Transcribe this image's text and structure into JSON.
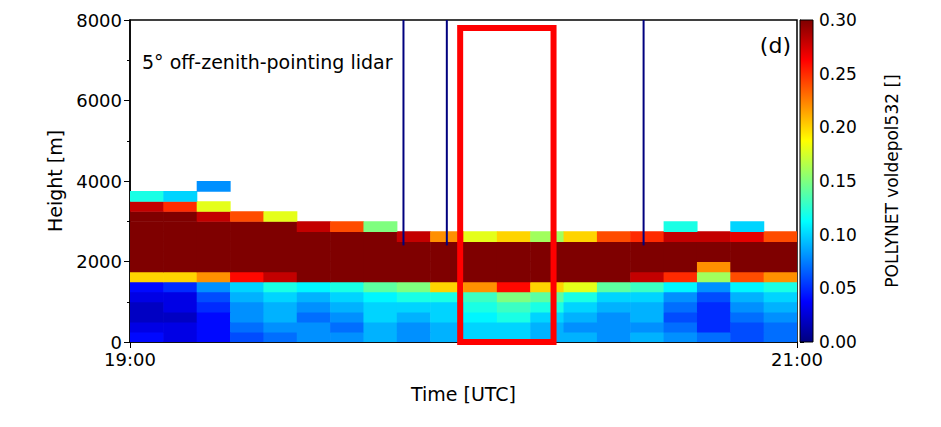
{
  "chart_data": {
    "type": "heatmap",
    "annotations": [
      "5° off-zenith-pointing lidar",
      "(d)"
    ],
    "x_label": "Time [UTC]",
    "y_label": "Height [m]",
    "xlim": [
      19,
      21
    ],
    "xticks": [
      {
        "value": 19,
        "label": "19:00"
      },
      {
        "value": 21,
        "label": "21:00"
      }
    ],
    "ylim": [
      0,
      8000
    ],
    "yticks": [
      0,
      2000,
      4000,
      6000,
      8000
    ],
    "grid": false,
    "x": [
      19.05,
      19.15,
      19.25,
      19.35,
      19.45,
      19.55,
      19.65,
      19.75,
      19.85,
      19.95,
      20.05,
      20.15,
      20.25,
      20.35,
      20.45,
      20.55,
      20.65,
      20.75,
      20.85,
      20.95
    ],
    "y": [
      125,
      375,
      625,
      875,
      1125,
      1375,
      1625,
      1875,
      2125,
      2375,
      2625,
      2875,
      3125,
      3375,
      3625,
      3875
    ],
    "cells": [
      [
        0.04,
        0.03,
        0.04,
        0.06,
        0.07,
        0.08,
        0.08,
        0.09,
        0.08,
        0.09,
        0.1,
        0.1,
        0.09,
        0.09,
        0.08,
        0.09,
        0.08,
        0.07,
        0.06,
        0.07
      ],
      [
        0.03,
        0.03,
        0.04,
        0.07,
        0.08,
        0.08,
        0.07,
        0.09,
        0.08,
        0.09,
        0.1,
        0.1,
        0.09,
        0.08,
        0.08,
        0.08,
        0.07,
        0.05,
        0.06,
        0.07
      ],
      [
        0.02,
        0.02,
        0.04,
        0.08,
        0.09,
        0.07,
        0.08,
        0.1,
        0.09,
        0.1,
        0.11,
        0.12,
        0.1,
        0.09,
        0.08,
        0.09,
        0.06,
        0.05,
        0.07,
        0.08
      ],
      [
        0.02,
        0.03,
        0.05,
        0.08,
        0.09,
        0.08,
        0.09,
        0.1,
        0.1,
        0.1,
        0.12,
        0.13,
        0.12,
        0.1,
        0.09,
        0.09,
        0.07,
        0.05,
        0.08,
        0.09
      ],
      [
        0.03,
        0.03,
        0.06,
        0.09,
        0.1,
        0.09,
        0.1,
        0.11,
        0.12,
        0.12,
        0.13,
        0.15,
        0.14,
        0.12,
        0.1,
        0.1,
        0.08,
        0.06,
        0.09,
        0.1
      ],
      [
        0.04,
        0.05,
        0.08,
        0.1,
        0.12,
        0.11,
        0.12,
        0.14,
        0.15,
        0.2,
        0.22,
        0.26,
        0.2,
        0.18,
        0.14,
        0.13,
        0.11,
        0.08,
        0.11,
        0.12
      ],
      [
        0.2,
        0.2,
        0.22,
        0.26,
        0.28,
        0.3,
        0.3,
        0.3,
        0.3,
        0.3,
        0.3,
        0.3,
        0.3,
        0.3,
        0.3,
        0.28,
        0.25,
        0.16,
        0.24,
        0.22
      ],
      [
        0.3,
        0.3,
        0.3,
        0.3,
        0.3,
        0.3,
        0.3,
        0.3,
        0.3,
        0.3,
        0.3,
        0.3,
        0.3,
        0.3,
        0.3,
        0.3,
        0.3,
        0.22,
        0.3,
        0.3
      ],
      [
        0.3,
        0.3,
        0.3,
        0.3,
        0.3,
        0.3,
        0.3,
        0.3,
        0.3,
        0.3,
        0.3,
        0.3,
        0.3,
        0.3,
        0.3,
        0.3,
        0.3,
        0.3,
        0.3,
        0.3
      ],
      [
        0.3,
        0.3,
        0.3,
        0.3,
        0.3,
        0.3,
        0.3,
        0.3,
        0.3,
        0.3,
        0.3,
        0.3,
        0.3,
        0.3,
        0.3,
        0.3,
        0.3,
        0.3,
        0.3,
        0.3
      ],
      [
        0.3,
        0.3,
        0.3,
        0.3,
        0.3,
        0.3,
        0.3,
        0.3,
        0.28,
        0.22,
        0.18,
        0.2,
        0.16,
        0.2,
        0.24,
        0.25,
        0.28,
        0.28,
        0.27,
        0.24
      ],
      [
        0.3,
        0.3,
        0.3,
        0.3,
        0.3,
        0.28,
        0.24,
        0.15,
        null,
        null,
        null,
        null,
        null,
        null,
        null,
        null,
        0.12,
        null,
        0.1,
        null
      ],
      [
        0.3,
        0.3,
        0.28,
        0.24,
        0.18,
        null,
        null,
        null,
        null,
        null,
        null,
        null,
        null,
        null,
        null,
        null,
        null,
        null,
        null,
        null
      ],
      [
        0.28,
        0.25,
        0.18,
        null,
        null,
        null,
        null,
        null,
        null,
        null,
        null,
        null,
        null,
        null,
        null,
        null,
        null,
        null,
        null,
        null
      ],
      [
        0.12,
        0.1,
        null,
        null,
        null,
        null,
        null,
        null,
        null,
        null,
        null,
        null,
        null,
        null,
        null,
        null,
        null,
        null,
        null,
        null
      ],
      [
        null,
        null,
        0.08,
        null,
        null,
        null,
        null,
        null,
        null,
        null,
        null,
        null,
        null,
        null,
        null,
        null,
        null,
        null,
        null,
        null
      ]
    ],
    "profiles": [
      {
        "x": 19.82,
        "y": [
          2400,
          8000
        ],
        "value": 0
      },
      {
        "x": 19.95,
        "y": [
          2400,
          8000
        ],
        "value": 0
      },
      {
        "x": 20.54,
        "y": [
          2400,
          8000
        ],
        "value": 0
      }
    ],
    "box": {
      "x": [
        19.99,
        20.27
      ],
      "y": [
        0,
        7800
      ],
      "color": "#ff0000"
    },
    "colorbar": {
      "label": "POLLYNET voldepol532 []",
      "range": [
        0,
        0.3
      ],
      "ticks": [
        {
          "value": 0,
          "label": "0.00"
        },
        {
          "value": 0.05,
          "label": "0.05"
        },
        {
          "value": 0.1,
          "label": "0.10"
        },
        {
          "value": 0.15,
          "label": "0.15"
        },
        {
          "value": 0.2,
          "label": "0.20"
        },
        {
          "value": 0.25,
          "label": "0.25"
        },
        {
          "value": 0.3,
          "label": "0.30"
        }
      ],
      "colors": [
        "#00007f",
        "#0000ff",
        "#007fff",
        "#00ffff",
        "#7fff7f",
        "#ffff00",
        "#ff7f00",
        "#ff0000",
        "#7f0000"
      ]
    }
  }
}
